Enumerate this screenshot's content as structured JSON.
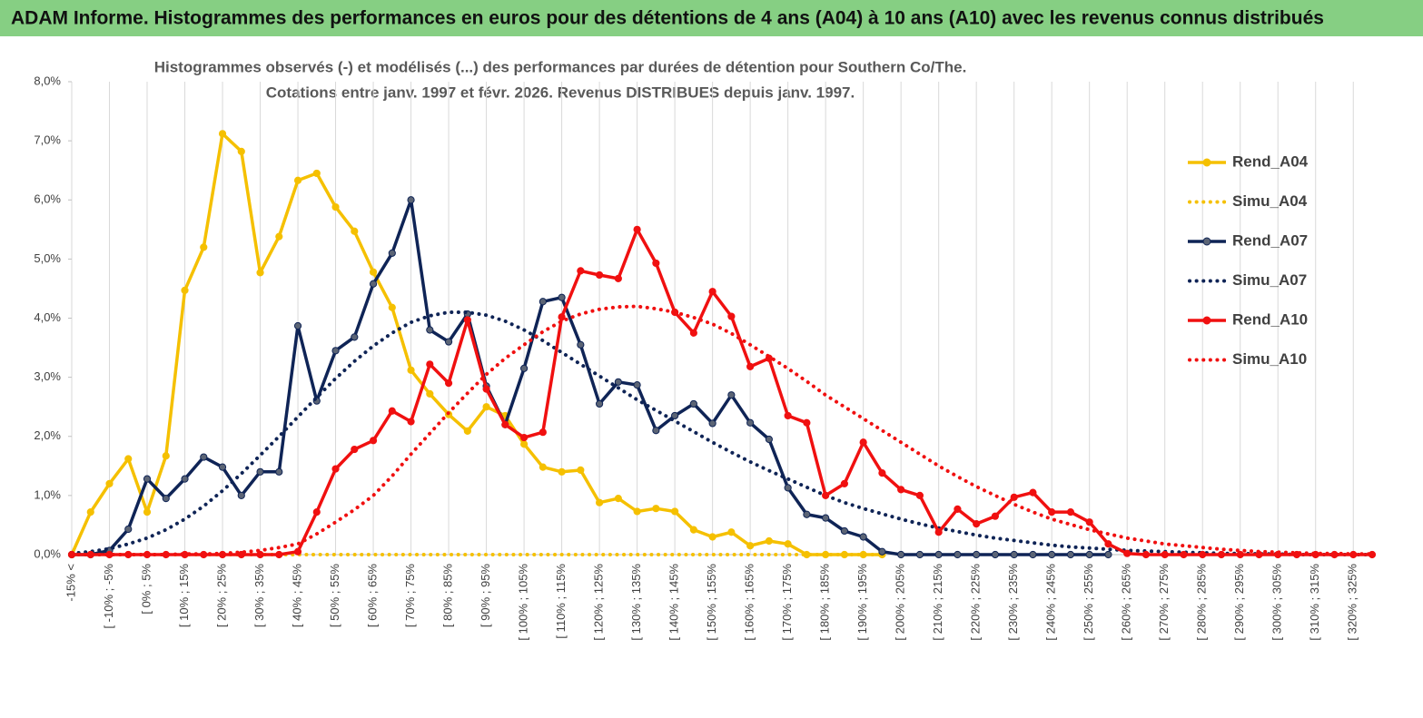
{
  "header": {
    "title": "ADAM Informe. Histogrammes des performances en euros pour des détentions de 4 ans (A04) à 10 ans (A10) avec les revenus connus distribués"
  },
  "chart_data": {
    "type": "line",
    "title": [
      "Histogrammes observés (-) et modélisés (...) des performances par durées de détention pour Southern Co/The.",
      "Cotations entre janv. 1997 et févr. 2026. Revenus DISTRIBUES depuis janv. 1997."
    ],
    "categories": [
      "-15% <",
      null,
      "[ -10% ; -5%",
      null,
      "[ 0% ; 5%",
      null,
      "[ 10% ; 15%",
      null,
      "[ 20% ; 25%",
      null,
      "[ 30% ; 35%",
      null,
      "[ 40% ; 45%",
      null,
      "[ 50% ; 55%",
      null,
      "[ 60% ; 65%",
      null,
      "[ 70% ; 75%",
      null,
      "[ 80% ; 85%",
      null,
      "[ 90% ; 95%",
      null,
      "[ 100% ; 105%",
      null,
      "[ 110% ; 115%",
      null,
      "[ 120% ; 125%",
      null,
      "[ 130% ; 135%",
      null,
      "[ 140% ; 145%",
      null,
      "[ 150% ; 155%",
      null,
      "[ 160% ; 165%",
      null,
      "[ 170% ; 175%",
      null,
      "[ 180% ; 185%",
      null,
      "[ 190% ; 195%",
      null,
      "[ 200% ; 205%",
      null,
      "[ 210% ; 215%",
      null,
      "[ 220% ; 225%",
      null,
      "[ 230% ; 235%",
      null,
      "[ 240% ; 245%",
      null,
      "[ 250% ; 255%",
      null,
      "[ 260% ; 265%",
      null,
      "[ 270% ; 275%",
      null,
      "[ 280% ; 285%",
      null,
      "[ 290% ; 295%",
      null,
      "[ 300% ; 305%",
      null,
      "[ 310% ; 315%",
      null,
      "[ 320% ; 325%",
      null
    ],
    "ylim": [
      0,
      8
    ],
    "yticks": [
      {
        "value": 0,
        "label": "0,0%"
      },
      {
        "value": 1,
        "label": "1,0%"
      },
      {
        "value": 2,
        "label": "2,0%"
      },
      {
        "value": 3,
        "label": "3,0%"
      },
      {
        "value": 4,
        "label": "4,0%"
      },
      {
        "value": 5,
        "label": "5,0%"
      },
      {
        "value": 6,
        "label": "6,0%"
      },
      {
        "value": 7,
        "label": "7,0%"
      },
      {
        "value": 8,
        "label": "8,0%"
      }
    ],
    "grid": "x",
    "legend": "right",
    "series": [
      {
        "name": "Rend_A04",
        "color": "#f5c000",
        "style": "solid",
        "markers": true,
        "values": [
          0,
          0.72,
          1.2,
          1.62,
          0.72,
          1.67,
          4.47,
          5.2,
          7.12,
          6.82,
          4.77,
          5.38,
          6.33,
          6.45,
          5.88,
          5.47,
          4.78,
          4.18,
          3.12,
          2.72,
          2.37,
          2.09,
          2.5,
          2.35,
          1.87,
          1.48,
          1.4,
          1.43,
          0.88,
          0.95,
          0.73,
          0.78,
          0.73,
          0.42,
          0.3,
          0.38,
          0.15,
          0.23,
          0.18,
          0,
          0,
          0,
          0,
          0,
          null,
          null,
          null,
          null,
          null,
          null,
          null,
          null,
          null,
          null,
          null,
          null,
          null,
          null,
          null,
          null,
          null,
          null,
          null,
          null,
          null,
          null,
          null,
          null,
          null,
          null
        ]
      },
      {
        "name": "Simu_A04",
        "color": "#f5c000",
        "style": "dotted",
        "markers": false,
        "values": [
          0,
          0,
          0,
          0,
          0,
          0,
          0,
          0,
          0,
          0,
          0,
          0,
          0,
          0,
          0,
          0,
          0,
          0,
          0,
          0,
          0,
          0,
          0,
          0,
          0,
          0,
          0,
          0,
          0,
          0,
          0,
          0,
          0,
          0,
          0,
          0,
          0,
          0,
          0,
          0,
          0,
          0,
          0,
          0,
          null,
          null,
          null,
          null,
          null,
          null,
          null,
          null,
          null,
          null,
          null,
          null,
          null,
          null,
          null,
          null,
          null,
          null,
          null,
          null,
          null,
          null,
          null,
          null,
          null,
          null
        ]
      },
      {
        "name": "Rend_A07",
        "color": "#0f2456",
        "style": "solid",
        "markers": true,
        "values": [
          0,
          0,
          0.07,
          0.43,
          1.28,
          0.95,
          1.28,
          1.65,
          1.48,
          1.0,
          1.4,
          1.4,
          3.87,
          2.6,
          3.45,
          3.68,
          4.58,
          5.1,
          6.0,
          3.8,
          3.6,
          4.07,
          2.85,
          2.2,
          3.15,
          4.28,
          4.35,
          3.55,
          2.55,
          2.92,
          2.87,
          2.1,
          2.35,
          2.55,
          2.22,
          2.7,
          2.23,
          1.95,
          1.13,
          0.68,
          0.62,
          0.4,
          0.3,
          0.05,
          0,
          0,
          0,
          0,
          0,
          0,
          0,
          0,
          0,
          0,
          0,
          0,
          null,
          null,
          null,
          null,
          null,
          null,
          null,
          null,
          null,
          null,
          null,
          null,
          null,
          null
        ]
      },
      {
        "name": "Simu_A07",
        "color": "#0f2456",
        "style": "dotted",
        "markers": false,
        "values": [
          0.02,
          0.05,
          0.1,
          0.18,
          0.28,
          0.42,
          0.6,
          0.82,
          1.08,
          1.37,
          1.68,
          2.0,
          2.33,
          2.66,
          2.98,
          3.27,
          3.53,
          3.75,
          3.93,
          4.04,
          4.1,
          4.1,
          4.05,
          3.95,
          3.8,
          3.62,
          3.42,
          3.22,
          3.02,
          2.82,
          2.62,
          2.44,
          2.26,
          2.08,
          1.9,
          1.73,
          1.57,
          1.42,
          1.28,
          1.14,
          1.0,
          0.88,
          0.78,
          0.69,
          0.6,
          0.52,
          0.45,
          0.39,
          0.33,
          0.28,
          0.24,
          0.2,
          0.16,
          0.13,
          0.11,
          0.09,
          0.07,
          0.06,
          0.05,
          0.04,
          0.03,
          0.02,
          0.02,
          0.01,
          0.01,
          0,
          0,
          0,
          0,
          0
        ]
      },
      {
        "name": "Rend_A10",
        "color": "#f01010",
        "style": "solid",
        "markers": true,
        "values": [
          0,
          0,
          0,
          0,
          0,
          0,
          0,
          0,
          0,
          0,
          0,
          0,
          0.05,
          0.72,
          1.45,
          1.78,
          1.93,
          2.43,
          2.25,
          3.22,
          2.9,
          3.97,
          2.8,
          2.2,
          1.98,
          2.07,
          4.02,
          4.8,
          4.73,
          4.67,
          5.5,
          4.93,
          4.1,
          3.75,
          4.45,
          4.03,
          3.18,
          3.32,
          2.35,
          2.23,
          1.0,
          1.2,
          1.9,
          1.38,
          1.1,
          1.0,
          0.38,
          0.77,
          0.52,
          0.65,
          0.97,
          1.05,
          0.72,
          0.72,
          0.55,
          0.18,
          0.02,
          0,
          0,
          0,
          0,
          0,
          0,
          0,
          0,
          0,
          0,
          0,
          0,
          0
        ]
      },
      {
        "name": "Simu_A10",
        "color": "#f01010",
        "style": "dotted",
        "markers": false,
        "values": [
          0,
          0,
          0,
          0,
          0,
          0,
          0.01,
          0.01,
          0.02,
          0.04,
          0.07,
          0.12,
          0.18,
          0.35,
          0.55,
          0.76,
          1.0,
          1.33,
          1.7,
          2.05,
          2.4,
          2.73,
          3.05,
          3.32,
          3.55,
          3.77,
          3.95,
          4.07,
          4.15,
          4.19,
          4.2,
          4.16,
          4.1,
          4.01,
          3.9,
          3.74,
          3.55,
          3.35,
          3.15,
          2.93,
          2.7,
          2.5,
          2.3,
          2.1,
          1.9,
          1.7,
          1.5,
          1.32,
          1.15,
          1.0,
          0.85,
          0.72,
          0.6,
          0.51,
          0.42,
          0.35,
          0.28,
          0.23,
          0.18,
          0.15,
          0.12,
          0.09,
          0.07,
          0.05,
          0.04,
          0.03,
          0.02,
          0.02,
          0.01,
          0.01
        ]
      }
    ]
  }
}
